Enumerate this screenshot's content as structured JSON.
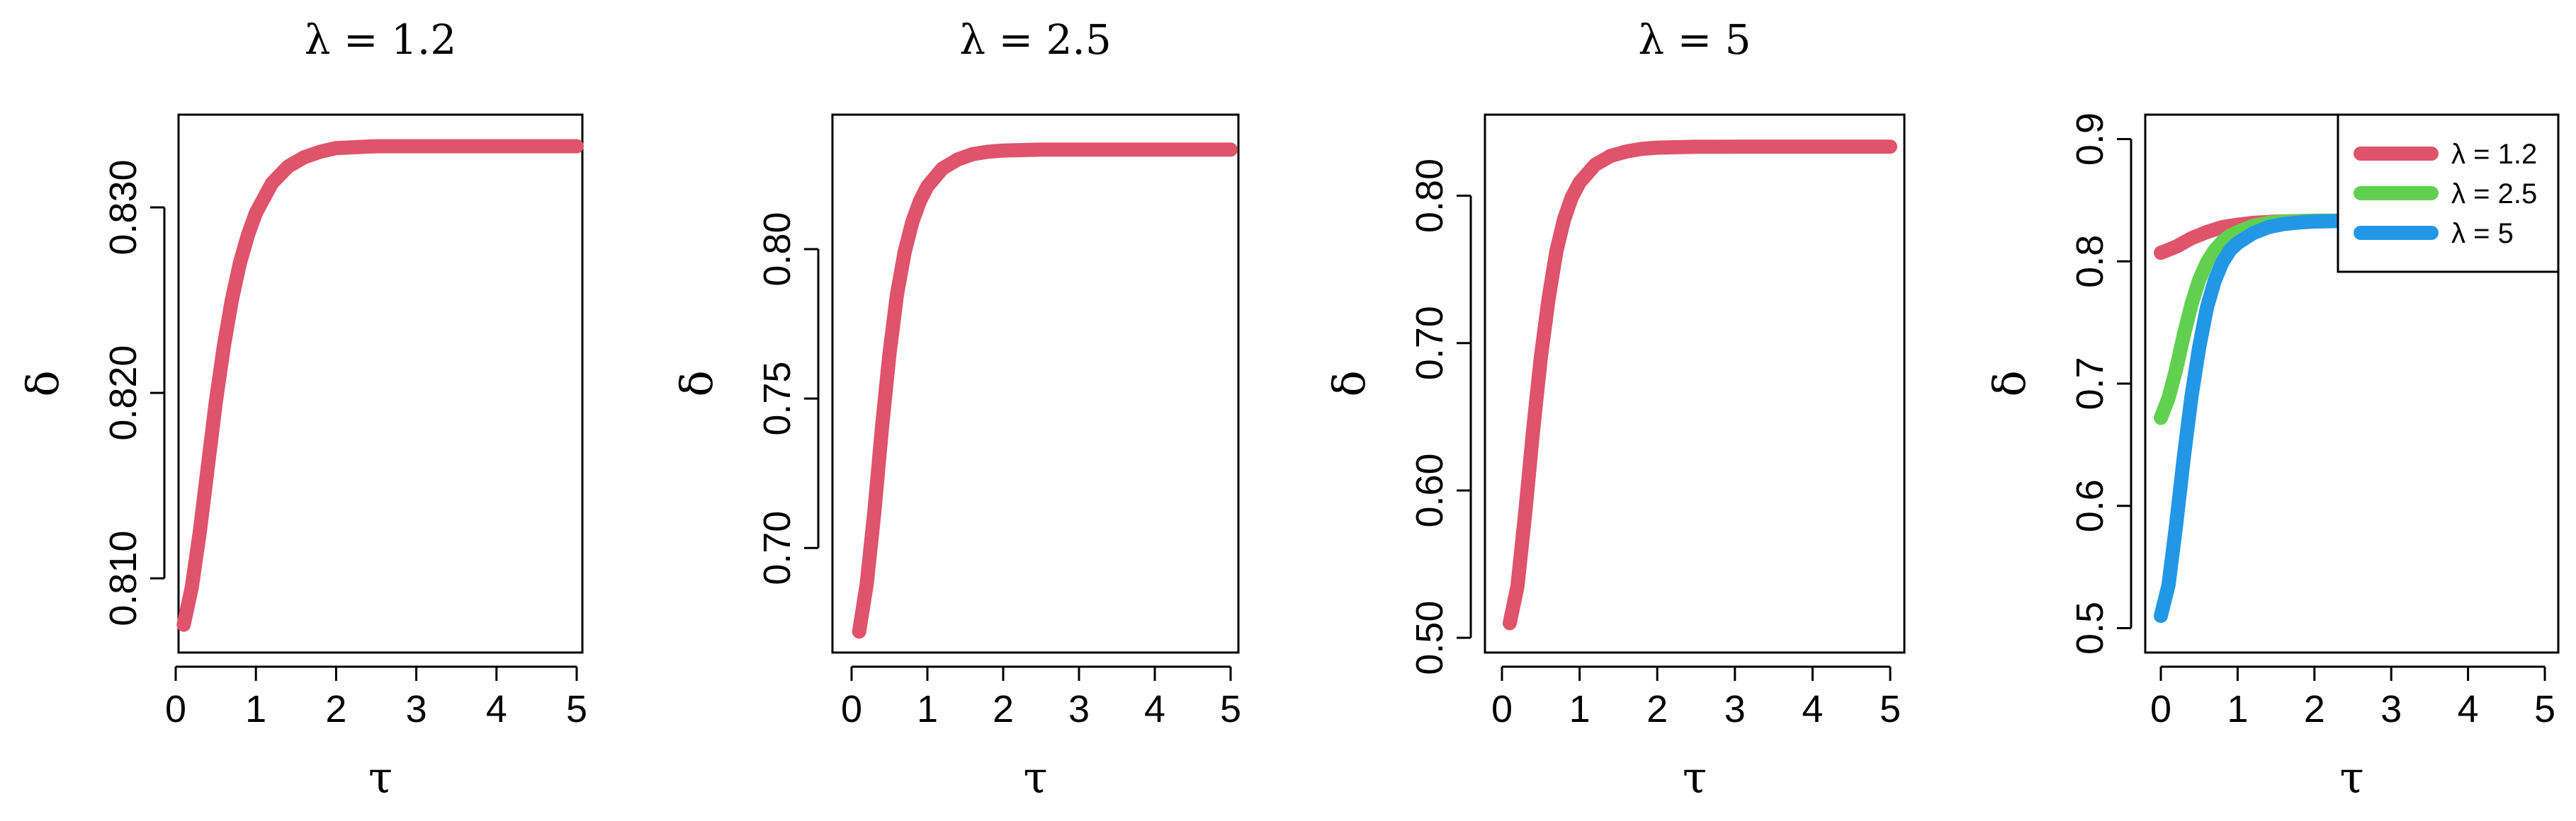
{
  "chart_data": [
    {
      "type": "line",
      "title": "λ = 1.2",
      "xlabel": "τ",
      "ylabel": "δ",
      "xlim": [
        0,
        5
      ],
      "ylim": [
        0.806,
        0.835
      ],
      "xticks": [
        "0",
        "1",
        "2",
        "3",
        "4",
        "5"
      ],
      "yticks": [
        "0.810",
        "0.820",
        "0.830"
      ],
      "grid": false,
      "series": [
        {
          "color": "#df536b",
          "x": [
            0.1,
            0.2,
            0.3,
            0.4,
            0.5,
            0.6,
            0.7,
            0.8,
            0.9,
            1.0,
            1.2,
            1.4,
            1.6,
            1.8,
            2.0,
            2.5,
            3.0,
            4.0,
            5.0
          ],
          "y": [
            0.8075,
            0.8095,
            0.8125,
            0.816,
            0.8195,
            0.8225,
            0.825,
            0.827,
            0.8285,
            0.8297,
            0.8313,
            0.8322,
            0.8327,
            0.833,
            0.8332,
            0.8333,
            0.8333,
            0.8333,
            0.8333
          ]
        }
      ]
    },
    {
      "type": "line",
      "title": "λ = 2.5",
      "xlabel": "τ",
      "ylabel": "δ",
      "xlim": [
        0,
        5
      ],
      "ylim": [
        0.665,
        0.845
      ],
      "xticks": [
        "0",
        "1",
        "2",
        "3",
        "4",
        "5"
      ],
      "yticks": [
        "0.70",
        "0.75",
        "0.80"
      ],
      "grid": false,
      "series": [
        {
          "color": "#df536b",
          "x": [
            0.1,
            0.2,
            0.3,
            0.4,
            0.5,
            0.6,
            0.7,
            0.8,
            0.9,
            1.0,
            1.2,
            1.4,
            1.6,
            1.8,
            2.0,
            2.5,
            3.0,
            4.0,
            5.0
          ],
          "y": [
            0.672,
            0.688,
            0.712,
            0.74,
            0.765,
            0.785,
            0.799,
            0.809,
            0.816,
            0.821,
            0.827,
            0.83,
            0.8318,
            0.8326,
            0.833,
            0.8333,
            0.8333,
            0.8333,
            0.8333
          ]
        }
      ]
    },
    {
      "type": "line",
      "title": "λ = 5",
      "xlabel": "τ",
      "ylabel": "δ",
      "xlim": [
        0,
        5
      ],
      "ylim": [
        0.49,
        0.855
      ],
      "xticks": [
        "0",
        "1",
        "2",
        "3",
        "4",
        "5"
      ],
      "yticks": [
        "0.50",
        "0.60",
        "0.70",
        "0.80"
      ],
      "grid": false,
      "series": [
        {
          "color": "#df536b",
          "x": [
            0.1,
            0.2,
            0.3,
            0.4,
            0.5,
            0.6,
            0.7,
            0.8,
            0.9,
            1.0,
            1.2,
            1.4,
            1.6,
            1.8,
            2.0,
            2.5,
            3.0,
            4.0,
            5.0
          ],
          "y": [
            0.51,
            0.535,
            0.585,
            0.64,
            0.69,
            0.73,
            0.762,
            0.784,
            0.799,
            0.809,
            0.821,
            0.827,
            0.83,
            0.8318,
            0.8326,
            0.8332,
            0.8333,
            0.8333,
            0.8333
          ]
        }
      ]
    },
    {
      "type": "line",
      "title": "",
      "xlabel": "τ",
      "ylabel": "δ",
      "xlim": [
        0,
        5
      ],
      "ylim": [
        0.48,
        0.92
      ],
      "xticks": [
        "0",
        "1",
        "2",
        "3",
        "4",
        "5"
      ],
      "yticks": [
        "0.5",
        "0.6",
        "0.7",
        "0.8",
        "0.9"
      ],
      "grid": false,
      "legend": "top-right",
      "series": [
        {
          "name": "λ = 1.2",
          "color": "#df536b",
          "x": [
            0.0,
            0.2,
            0.4,
            0.6,
            0.8,
            1.0,
            1.2,
            1.5,
            2.0,
            3.0,
            4.0,
            5.0
          ],
          "y": [
            0.807,
            0.812,
            0.819,
            0.824,
            0.828,
            0.83,
            0.8315,
            0.8325,
            0.8332,
            0.8333,
            0.8333,
            0.8333
          ]
        },
        {
          "name": "λ = 2.5",
          "color": "#61d04f",
          "x": [
            0.0,
            0.1,
            0.2,
            0.3,
            0.4,
            0.5,
            0.6,
            0.7,
            0.8,
            0.9,
            1.0,
            1.2,
            1.4,
            1.6,
            2.0,
            3.0,
            4.0,
            5.0
          ],
          "y": [
            0.672,
            0.688,
            0.712,
            0.74,
            0.765,
            0.785,
            0.799,
            0.809,
            0.816,
            0.821,
            0.824,
            0.829,
            0.8315,
            0.8325,
            0.8332,
            0.8333,
            0.8333,
            0.8333
          ]
        },
        {
          "name": "λ = 5",
          "color": "#2297e6",
          "x": [
            0.0,
            0.1,
            0.2,
            0.3,
            0.4,
            0.5,
            0.6,
            0.7,
            0.8,
            0.9,
            1.0,
            1.2,
            1.4,
            1.6,
            1.8,
            2.0,
            2.5,
            3.0,
            4.0,
            5.0
          ],
          "y": [
            0.51,
            0.535,
            0.585,
            0.64,
            0.69,
            0.73,
            0.762,
            0.784,
            0.799,
            0.809,
            0.815,
            0.823,
            0.828,
            0.8305,
            0.8318,
            0.8326,
            0.8332,
            0.8333,
            0.8333,
            0.8333
          ]
        }
      ]
    }
  ]
}
